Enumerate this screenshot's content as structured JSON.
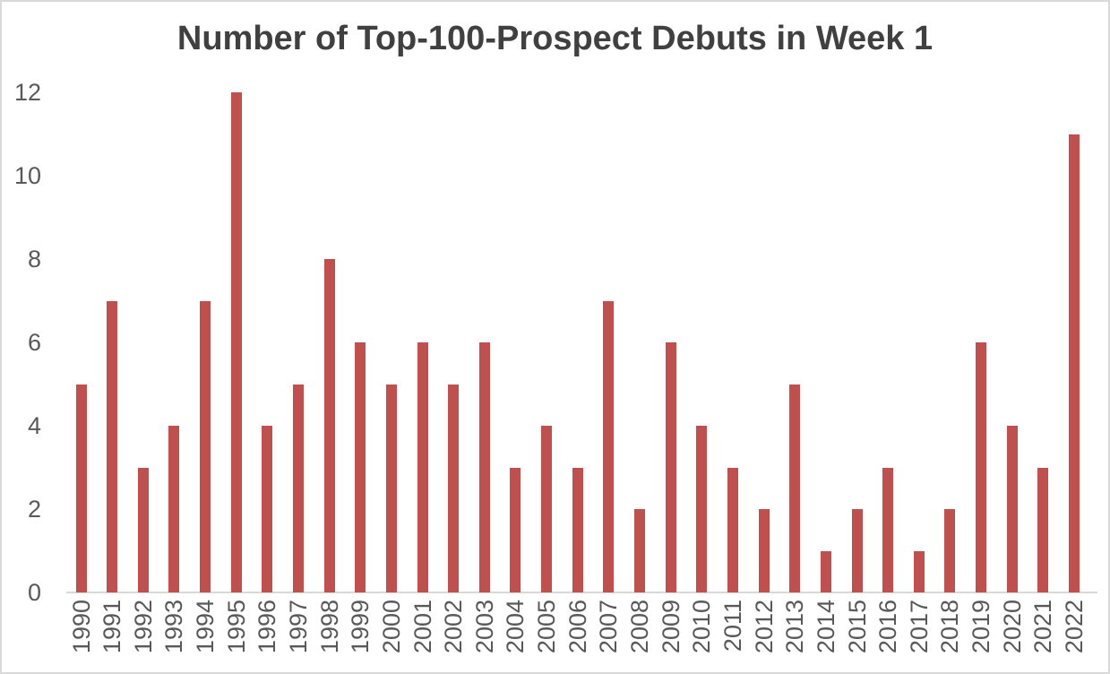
{
  "chart_data": {
    "type": "bar",
    "title": "Number of Top-100-Prospect Debuts in Week 1",
    "categories": [
      "1990",
      "1991",
      "1992",
      "1993",
      "1994",
      "1995",
      "1996",
      "1997",
      "1998",
      "1999",
      "2000",
      "2001",
      "2002",
      "2003",
      "2004",
      "2005",
      "2006",
      "2007",
      "2008",
      "2009",
      "2010",
      "2011",
      "2012",
      "2013",
      "2014",
      "2015",
      "2016",
      "2017",
      "2018",
      "2019",
      "2020",
      "2021",
      "2022"
    ],
    "values": [
      5,
      7,
      3,
      4,
      7,
      12,
      4,
      5,
      8,
      6,
      5,
      6,
      5,
      6,
      3,
      4,
      3,
      7,
      2,
      6,
      4,
      3,
      2,
      5,
      1,
      2,
      3,
      1,
      2,
      6,
      4,
      3,
      11
    ],
    "xlabel": "",
    "ylabel": "",
    "ylim": [
      0,
      12
    ],
    "yticks": [
      0,
      2,
      4,
      6,
      8,
      10,
      12
    ],
    "grid": false,
    "legend": false,
    "x_tick_rotation_degrees": -90,
    "colors": {
      "bar": "#C0504D",
      "title": "#404040",
      "tick_labels": "#595959",
      "axis_line": "#D9D9D9",
      "frame_border": "#D9D9D9",
      "background": "#FFFFFF"
    }
  }
}
